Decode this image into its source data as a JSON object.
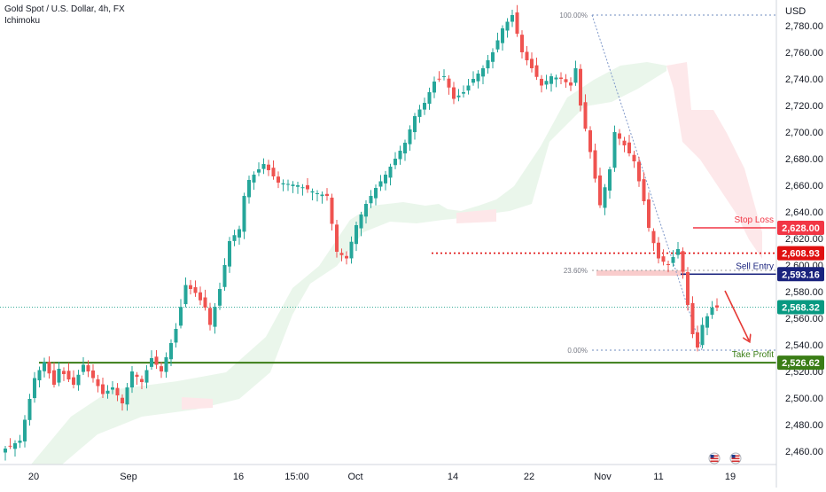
{
  "header": {
    "title": "Gold Spot / U.S. Dollar, 4h, FX",
    "indicator": "Ichimoku"
  },
  "axis": {
    "currency": "USD"
  },
  "chart_data": {
    "type": "candlestick",
    "y_ticks": [
      "2,780.00",
      "2,760.00",
      "2,740.00",
      "2,720.00",
      "2,700.00",
      "2,680.00",
      "2,660.00",
      "2,640.00",
      "2,620.00",
      "2,600.00",
      "2,580.00",
      "2,560.00",
      "2,540.00",
      "2,520.00",
      "2,500.00",
      "2,480.00",
      "2,460.00"
    ],
    "ylim": [
      2455,
      2792
    ],
    "x_ticks": [
      "20",
      "Sep",
      "16",
      "15:00",
      "Oct",
      "14",
      "22",
      "Nov",
      "11",
      "19"
    ],
    "series_colors": {
      "up": "#26a69a",
      "down": "#ef5350"
    },
    "price_path": [
      [
        0,
        2462
      ],
      [
        3,
        2468
      ],
      [
        6,
        2515
      ],
      [
        8,
        2527
      ],
      [
        10,
        2510
      ],
      [
        11,
        2522
      ],
      [
        14,
        2510
      ],
      [
        16,
        2525
      ],
      [
        18,
        2515
      ],
      [
        20,
        2503
      ],
      [
        22,
        2508
      ],
      [
        24,
        2496
      ],
      [
        26,
        2520
      ],
      [
        28,
        2512
      ],
      [
        30,
        2530
      ],
      [
        32,
        2520
      ],
      [
        35,
        2552
      ],
      [
        37,
        2585
      ],
      [
        39,
        2579
      ],
      [
        41,
        2568
      ],
      [
        42,
        2555
      ],
      [
        44,
        2582
      ],
      [
        46,
        2618
      ],
      [
        48,
        2627
      ],
      [
        49,
        2652
      ],
      [
        50,
        2664
      ],
      [
        53,
        2676
      ],
      [
        56,
        2662
      ],
      [
        60,
        2660
      ],
      [
        64,
        2654
      ],
      [
        66,
        2652
      ],
      [
        68,
        2610
      ],
      [
        70,
        2605
      ],
      [
        72,
        2630
      ],
      [
        74,
        2646
      ],
      [
        76,
        2658
      ],
      [
        78,
        2668
      ],
      [
        80,
        2680
      ],
      [
        82,
        2692
      ],
      [
        84,
        2712
      ],
      [
        86,
        2722
      ],
      [
        88,
        2738
      ],
      [
        90,
        2742
      ],
      [
        92,
        2725
      ],
      [
        94,
        2730
      ],
      [
        96,
        2740
      ],
      [
        98,
        2748
      ],
      [
        100,
        2760
      ],
      [
        102,
        2778
      ],
      [
        104,
        2788
      ],
      [
        106,
        2760
      ],
      [
        108,
        2748
      ],
      [
        110,
        2735
      ],
      [
        112,
        2742
      ],
      [
        114,
        2740
      ],
      [
        116,
        2735
      ],
      [
        117,
        2748
      ],
      [
        118,
        2720
      ],
      [
        120,
        2685
      ],
      [
        122,
        2645
      ],
      [
        124,
        2672
      ],
      [
        125,
        2700
      ],
      [
        127,
        2690
      ],
      [
        129,
        2678
      ],
      [
        131,
        2648
      ],
      [
        132,
        2628
      ],
      [
        134,
        2605
      ],
      [
        136,
        2600
      ],
      [
        138,
        2612
      ],
      [
        139,
        2595
      ],
      [
        140,
        2570
      ],
      [
        141,
        2548
      ],
      [
        142,
        2538
      ],
      [
        143,
        2555
      ],
      [
        145,
        2568
      ],
      [
        146,
        2568
      ]
    ],
    "levels": [
      {
        "label": "Stop Loss",
        "value": 2628.0,
        "price_label": "2,628.00",
        "color": "#f23645",
        "style": "solid"
      },
      {
        "label": "",
        "value": 2608.93,
        "price_label": "2,608.93",
        "color": "#e01010",
        "style": "dotted"
      },
      {
        "label": "Sell Entry",
        "value": 2593.16,
        "price_label": "2,593.16",
        "color": "#1a237e",
        "style": "solid"
      },
      {
        "label": "",
        "value": 2568.32,
        "price_label": "2,568.32",
        "color": "#089981",
        "style": "current"
      },
      {
        "label": "Take Profit",
        "value": 2526.62,
        "price_label": "2,526.62",
        "color": "#3a7d16",
        "style": "solid"
      }
    ],
    "fibonacci": [
      {
        "label": "100.00%",
        "value": 2788
      },
      {
        "label": "23.60%",
        "value": 2596
      },
      {
        "label": "0.00%",
        "value": 2536
      }
    ],
    "events": [
      "us-flag-icon",
      "us-flag-icon"
    ]
  }
}
